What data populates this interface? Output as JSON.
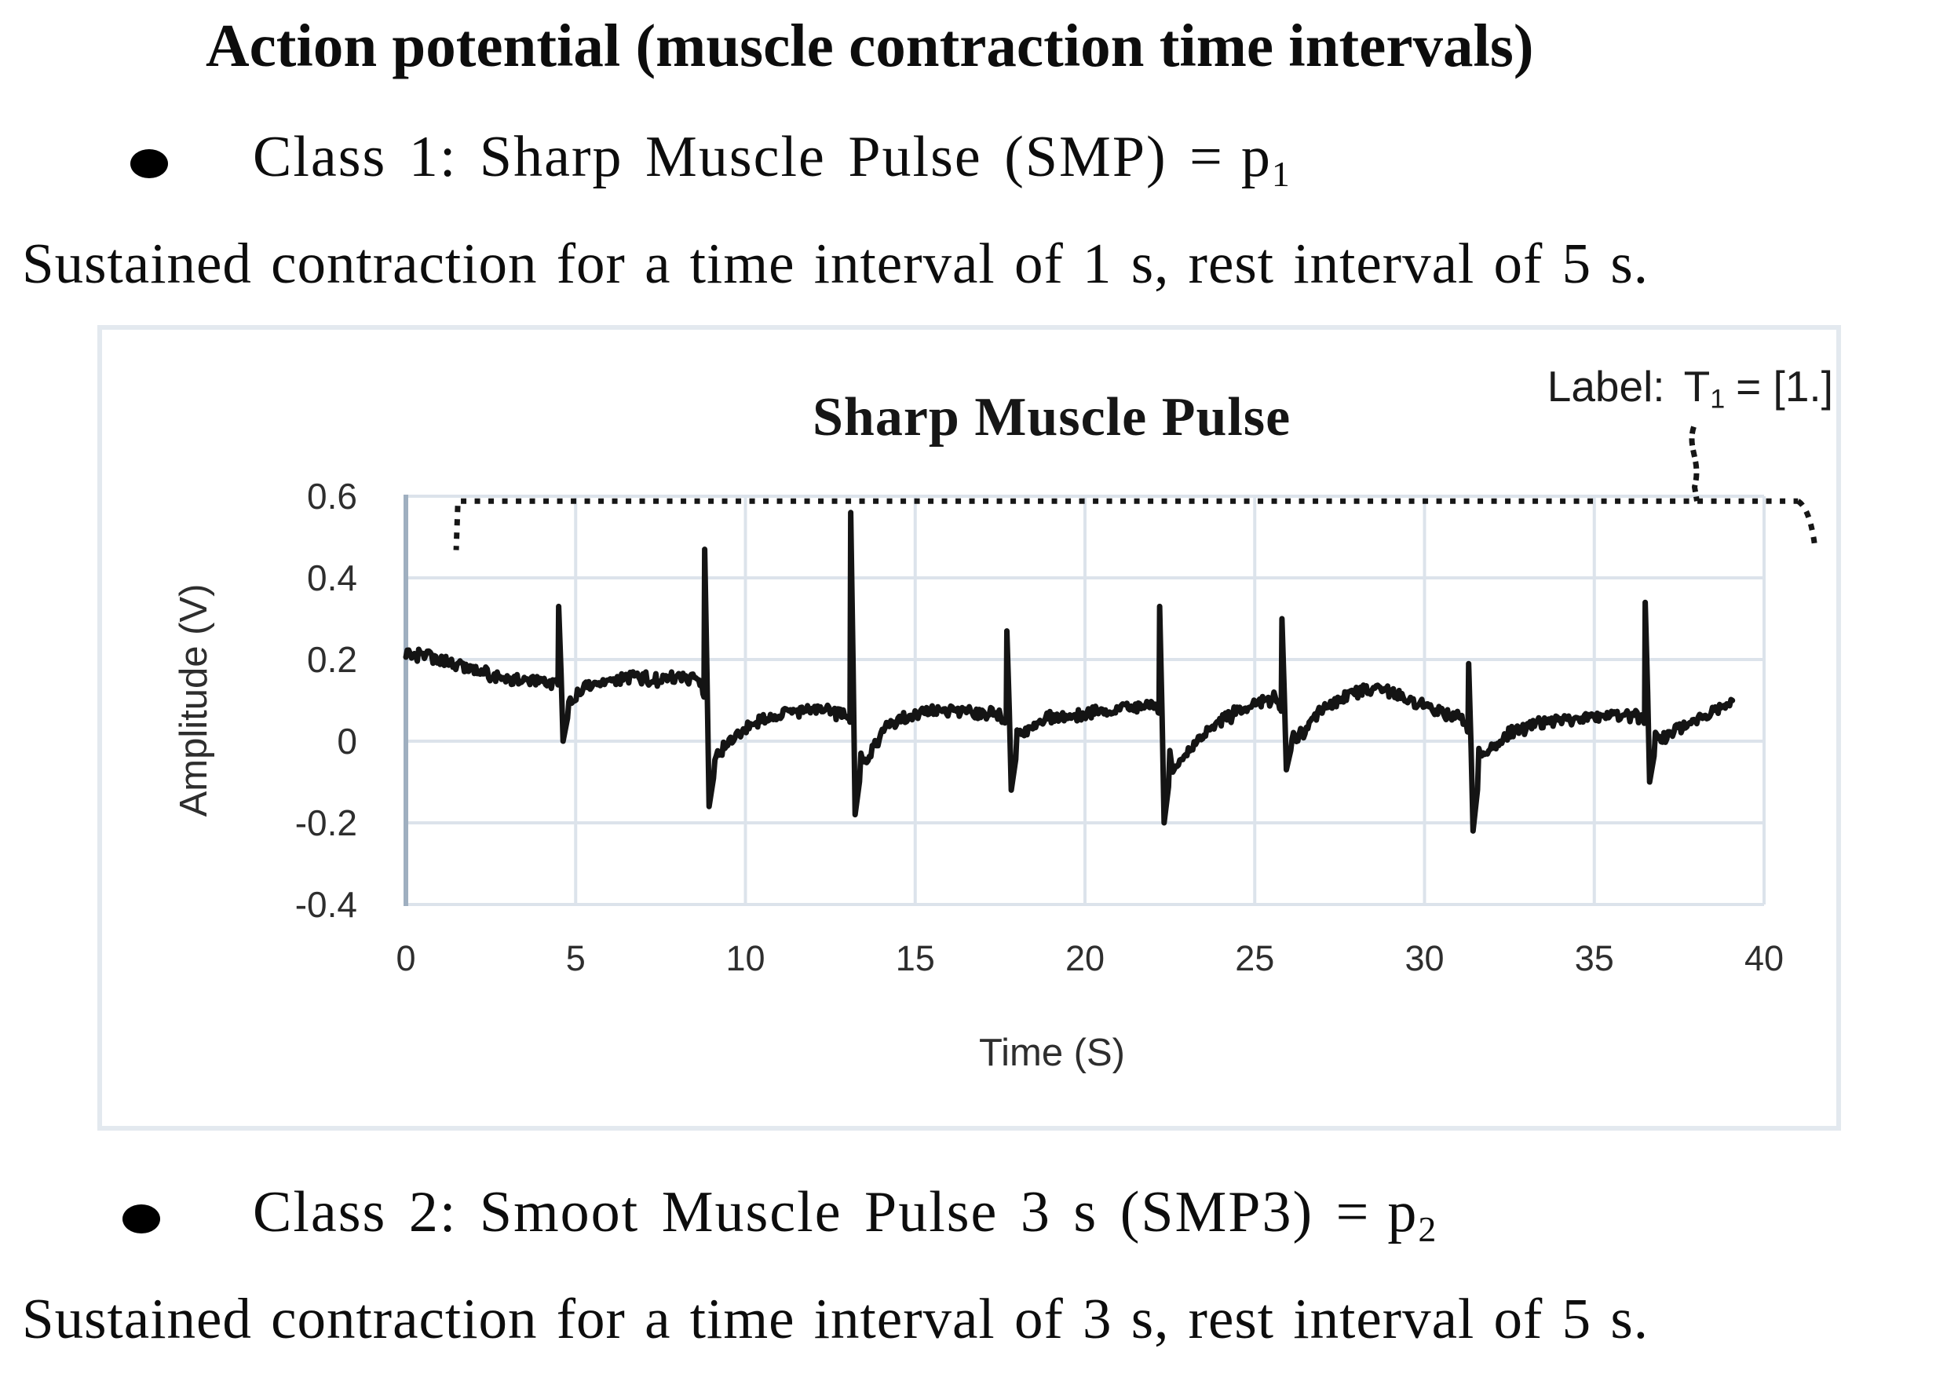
{
  "page": {
    "heading": "Action potential (muscle contraction time intervals)",
    "bullet1": {
      "marker": "•",
      "text": "Class 1: Sharp Muscle Pulse (SMP) =",
      "var": "p",
      "sub": "1"
    },
    "para1": "Sustained contraction for a time interval of 1 s, rest interval of 5 s.",
    "bullet2": {
      "marker": "•",
      "text": "Class 2: Smoot Muscle Pulse 3 s (SMP3) =",
      "var": "p",
      "sub": "2"
    },
    "para2": "Sustained contraction for a time interval of 3 s, rest interval of 5 s."
  },
  "colors": {
    "background": "#ffffff",
    "signal": "#141414",
    "gridline": "#dce3eb",
    "axis_line": "#9fafc0",
    "panel_border": "#e3e9ef",
    "tick_text": "#2e2e2e",
    "annotation_ink": "#161616"
  },
  "chart_data": {
    "type": "line",
    "title": "Sharp Muscle Pulse",
    "xlabel": "Time (S)",
    "ylabel": "Amplitude (V)",
    "xlim": [
      0,
      40
    ],
    "ylim": [
      -0.4,
      0.6
    ],
    "x_ticks": [
      0,
      5,
      10,
      15,
      20,
      25,
      30,
      35,
      40
    ],
    "y_ticks": [
      0.6,
      0.4,
      0.2,
      0,
      -0.2,
      -0.4
    ],
    "y_tick_labels": [
      "0.6",
      "0.4",
      "0.2",
      "0",
      "-0.2",
      "-0.4"
    ],
    "grid": true,
    "legend": "none",
    "annotation": {
      "prefix": "Label:",
      "symbol": "T",
      "symbol_sub": "1",
      "suffix": "= [1.]"
    },
    "bracket": {
      "v": 0.588,
      "t_start": 1.62,
      "t_end": 41.0,
      "tail_v": 0.468,
      "connector_t": 37.93,
      "connector_top_v": 0.77
    },
    "signal": {
      "units": {
        "x": "s",
        "y": "V"
      },
      "t_end": 39.1,
      "noise": 0.012,
      "baseline": [
        [
          0,
          0.215
        ],
        [
          0.8,
          0.205
        ],
        [
          1.6,
          0.185
        ],
        [
          2.6,
          0.16
        ],
        [
          3.4,
          0.15
        ],
        [
          4.4,
          0.145
        ],
        [
          4.9,
          0.1
        ],
        [
          5.3,
          0.135
        ],
        [
          6.0,
          0.15
        ],
        [
          6.8,
          0.155
        ],
        [
          7.6,
          0.15
        ],
        [
          8.2,
          0.155
        ],
        [
          8.7,
          0.145
        ],
        [
          9.1,
          -0.04
        ],
        [
          9.8,
          0.02
        ],
        [
          10.6,
          0.055
        ],
        [
          11.4,
          0.07
        ],
        [
          12.2,
          0.075
        ],
        [
          13.0,
          0.065
        ],
        [
          13.5,
          -0.05
        ],
        [
          14.2,
          0.04
        ],
        [
          15.0,
          0.065
        ],
        [
          15.8,
          0.075
        ],
        [
          16.6,
          0.07
        ],
        [
          17.5,
          0.065
        ],
        [
          18.1,
          0.02
        ],
        [
          18.9,
          0.055
        ],
        [
          19.7,
          0.065
        ],
        [
          20.6,
          0.075
        ],
        [
          21.4,
          0.085
        ],
        [
          22.1,
          0.095
        ],
        [
          22.6,
          -0.07
        ],
        [
          23.3,
          0.0
        ],
        [
          24.0,
          0.05
        ],
        [
          24.8,
          0.085
        ],
        [
          25.6,
          0.105
        ],
        [
          26.2,
          0.0
        ],
        [
          26.9,
          0.07
        ],
        [
          27.7,
          0.115
        ],
        [
          28.5,
          0.13
        ],
        [
          29.3,
          0.11
        ],
        [
          30.1,
          0.08
        ],
        [
          31.1,
          0.055
        ],
        [
          31.7,
          -0.04
        ],
        [
          32.4,
          0.015
        ],
        [
          33.2,
          0.04
        ],
        [
          34.0,
          0.05
        ],
        [
          34.8,
          0.06
        ],
        [
          35.6,
          0.065
        ],
        [
          36.4,
          0.06
        ],
        [
          37.0,
          0.005
        ],
        [
          37.5,
          0.035
        ],
        [
          38.1,
          0.055
        ],
        [
          38.7,
          0.08
        ],
        [
          39.1,
          0.095
        ]
      ],
      "spikes": [
        {
          "t": 4.5,
          "peak": 0.33,
          "trough": 0.0
        },
        {
          "t": 8.8,
          "peak": 0.47,
          "trough": -0.16
        },
        {
          "t": 13.1,
          "peak": 0.56,
          "trough": -0.18
        },
        {
          "t": 17.7,
          "peak": 0.27,
          "trough": -0.12
        },
        {
          "t": 22.2,
          "peak": 0.33,
          "trough": -0.2
        },
        {
          "t": 25.8,
          "peak": 0.3,
          "trough": -0.07
        },
        {
          "t": 31.3,
          "peak": 0.19,
          "trough": -0.22
        },
        {
          "t": 36.5,
          "peak": 0.34,
          "trough": -0.1
        }
      ]
    }
  }
}
